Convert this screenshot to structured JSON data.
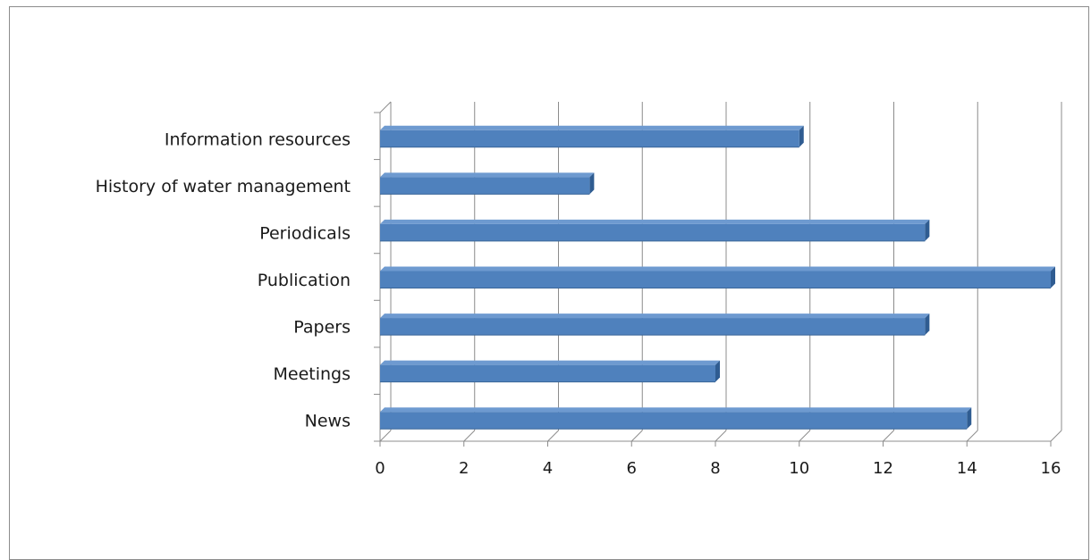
{
  "chart_data": {
    "type": "bar",
    "orientation": "horizontal",
    "style": "3d",
    "title": "",
    "xlabel": "",
    "ylabel": "",
    "categories": [
      "Information resources",
      "History of water management",
      "Periodicals",
      "Publication",
      "Papers",
      "Meetings",
      "News"
    ],
    "values": [
      10,
      5,
      13,
      16,
      13,
      8,
      14
    ],
    "xlim": [
      0,
      16
    ],
    "xticks": [
      "0",
      "2",
      "4",
      "6",
      "8",
      "10",
      "12",
      "14",
      "16"
    ],
    "grid": "vertical",
    "legend": "none",
    "colors": {
      "bar_front": "#4f81bd",
      "bar_top": "#6e9ad0",
      "bar_side": "#2f5c91",
      "grid": "#8c8c8c"
    }
  }
}
